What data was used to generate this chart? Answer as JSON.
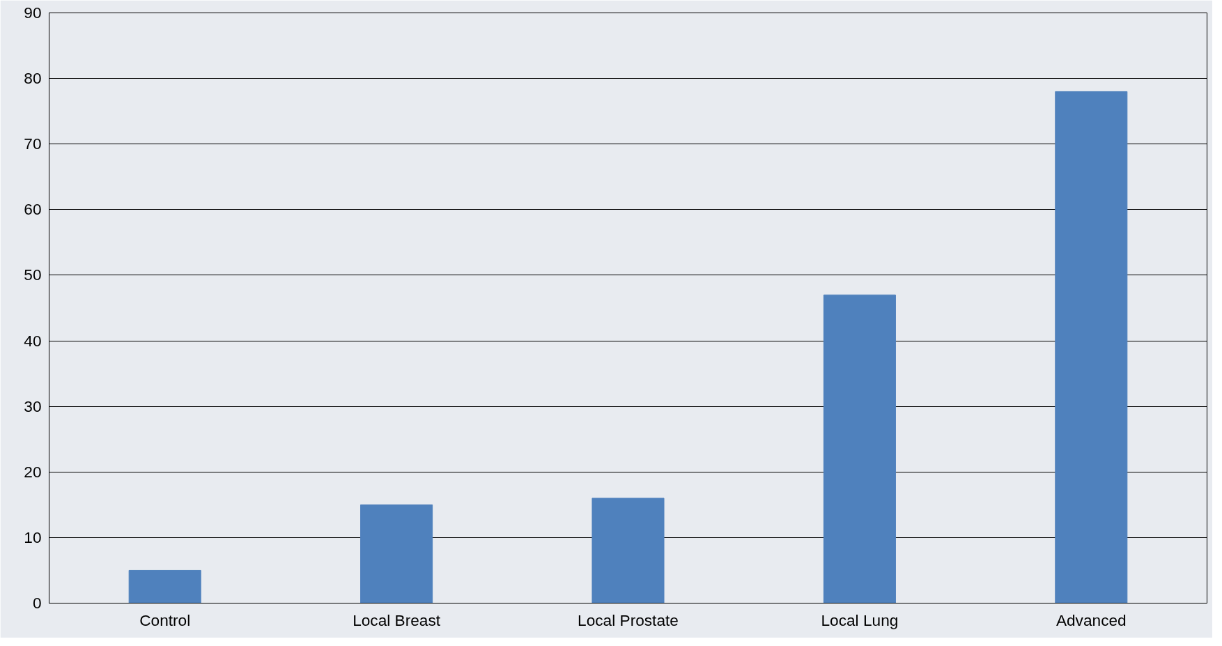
{
  "chart_data": {
    "type": "bar",
    "categories": [
      "Control",
      "Local Breast",
      "Local Prostate",
      "Local Lung",
      "Advanced"
    ],
    "values": [
      5,
      15,
      16,
      47,
      78
    ],
    "color": "#4f81bd",
    "ylim": [
      0,
      90
    ],
    "yticks": [
      0,
      10,
      20,
      30,
      40,
      50,
      60,
      70,
      80,
      90
    ],
    "grid": "y"
  }
}
